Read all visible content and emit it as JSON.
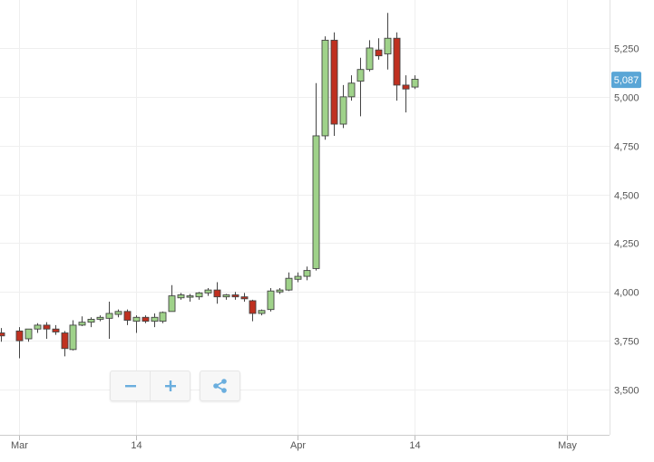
{
  "chart_data": {
    "type": "candlestick",
    "y_ticks": [
      3500,
      3750,
      4000,
      4250,
      4500,
      4750,
      5000,
      5250
    ],
    "y_tick_labels": [
      "3,500",
      "3,750",
      "4,000",
      "4,250",
      "4,500",
      "4,750",
      "5,000",
      "5,250"
    ],
    "ylim": [
      3280,
      5500
    ],
    "x_axis_labels": [
      {
        "date": "Mar 1",
        "label": "Mar"
      },
      {
        "date": "Mar 14",
        "label": "14"
      },
      {
        "date": "Apr 1",
        "label": "Apr"
      },
      {
        "date": "Apr 14",
        "label": "14"
      },
      {
        "date": "May 1",
        "label": "May"
      }
    ],
    "last_price_label": "5,087",
    "last_price": 5087,
    "colors": {
      "up_fill": "#9fd28a",
      "down_fill": "#bf3020",
      "candle_border": "#444444",
      "last_badge": "#5aa6d6",
      "grid": "#efefef",
      "icon": "#6aaede"
    },
    "candles": [
      {
        "date": "Feb 28",
        "open": 3790,
        "high": 3815,
        "low": 3745,
        "close": 3775
      },
      {
        "date": "Mar 1",
        "open": 3800,
        "high": 3820,
        "low": 3660,
        "close": 3750
      },
      {
        "date": "Mar 2",
        "open": 3760,
        "high": 3810,
        "low": 3745,
        "close": 3810
      },
      {
        "date": "Mar 3",
        "open": 3810,
        "high": 3840,
        "low": 3790,
        "close": 3830
      },
      {
        "date": "Mar 4",
        "open": 3830,
        "high": 3845,
        "low": 3760,
        "close": 3810
      },
      {
        "date": "Mar 5",
        "open": 3810,
        "high": 3830,
        "low": 3780,
        "close": 3795
      },
      {
        "date": "Mar 6",
        "open": 3790,
        "high": 3800,
        "low": 3670,
        "close": 3710
      },
      {
        "date": "Mar 7",
        "open": 3705,
        "high": 3855,
        "low": 3700,
        "close": 3830
      },
      {
        "date": "Mar 8",
        "open": 3830,
        "high": 3875,
        "low": 3825,
        "close": 3845
      },
      {
        "date": "Mar 9",
        "open": 3845,
        "high": 3870,
        "low": 3820,
        "close": 3860
      },
      {
        "date": "Mar 10",
        "open": 3860,
        "high": 3880,
        "low": 3850,
        "close": 3870
      },
      {
        "date": "Mar 11",
        "open": 3865,
        "high": 3950,
        "low": 3760,
        "close": 3890
      },
      {
        "date": "Mar 12",
        "open": 3885,
        "high": 3910,
        "low": 3870,
        "close": 3900
      },
      {
        "date": "Mar 13",
        "open": 3900,
        "high": 3910,
        "low": 3830,
        "close": 3855
      },
      {
        "date": "Mar 14",
        "open": 3850,
        "high": 3880,
        "low": 3790,
        "close": 3870
      },
      {
        "date": "Mar 15",
        "open": 3870,
        "high": 3880,
        "low": 3840,
        "close": 3850
      },
      {
        "date": "Mar 16",
        "open": 3850,
        "high": 3890,
        "low": 3820,
        "close": 3870
      },
      {
        "date": "Mar 17",
        "open": 3850,
        "high": 3900,
        "low": 3840,
        "close": 3895
      },
      {
        "date": "Mar 18",
        "open": 3900,
        "high": 4035,
        "low": 3900,
        "close": 3980
      },
      {
        "date": "Mar 19",
        "open": 3970,
        "high": 3995,
        "low": 3960,
        "close": 3985
      },
      {
        "date": "Mar 20",
        "open": 3975,
        "high": 3990,
        "low": 3950,
        "close": 3980
      },
      {
        "date": "Mar 21",
        "open": 3975,
        "high": 4000,
        "low": 3960,
        "close": 3995
      },
      {
        "date": "Mar 22",
        "open": 3995,
        "high": 4020,
        "low": 3980,
        "close": 4010
      },
      {
        "date": "Mar 23",
        "open": 4010,
        "high": 4050,
        "low": 3940,
        "close": 3975
      },
      {
        "date": "Mar 24",
        "open": 3975,
        "high": 3990,
        "low": 3960,
        "close": 3985
      },
      {
        "date": "Mar 25",
        "open": 3985,
        "high": 4000,
        "low": 3960,
        "close": 3975
      },
      {
        "date": "Mar 26",
        "open": 3975,
        "high": 3995,
        "low": 3950,
        "close": 3965
      },
      {
        "date": "Mar 27",
        "open": 3955,
        "high": 3960,
        "low": 3850,
        "close": 3890
      },
      {
        "date": "Mar 28",
        "open": 3890,
        "high": 3910,
        "low": 3880,
        "close": 3905
      },
      {
        "date": "Mar 29",
        "open": 3910,
        "high": 4020,
        "low": 3900,
        "close": 4005
      },
      {
        "date": "Mar 30",
        "open": 4000,
        "high": 4020,
        "low": 3990,
        "close": 4010
      },
      {
        "date": "Mar 31",
        "open": 4010,
        "high": 4100,
        "low": 4005,
        "close": 4070
      },
      {
        "date": "Apr 1",
        "open": 4065,
        "high": 4100,
        "low": 4050,
        "close": 4080
      },
      {
        "date": "Apr 2",
        "open": 4080,
        "high": 4130,
        "low": 4060,
        "close": 4110
      },
      {
        "date": "Apr 3",
        "open": 4120,
        "high": 5070,
        "low": 4110,
        "close": 4800
      },
      {
        "date": "Apr 4",
        "open": 4800,
        "high": 5310,
        "low": 4780,
        "close": 5290
      },
      {
        "date": "Apr 5",
        "open": 5290,
        "high": 5330,
        "low": 4800,
        "close": 4860
      },
      {
        "date": "Apr 6",
        "open": 4860,
        "high": 5060,
        "low": 4840,
        "close": 5000
      },
      {
        "date": "Apr 7",
        "open": 5000,
        "high": 5110,
        "low": 4980,
        "close": 5070
      },
      {
        "date": "Apr 8",
        "open": 5080,
        "high": 5200,
        "low": 4900,
        "close": 5140
      },
      {
        "date": "Apr 9",
        "open": 5140,
        "high": 5290,
        "low": 5130,
        "close": 5250
      },
      {
        "date": "Apr 10",
        "open": 5240,
        "high": 5300,
        "low": 5190,
        "close": 5210
      },
      {
        "date": "Apr 11",
        "open": 5220,
        "high": 5430,
        "low": 5140,
        "close": 5300
      },
      {
        "date": "Apr 12",
        "open": 5300,
        "high": 5330,
        "low": 4980,
        "close": 5060
      },
      {
        "date": "Apr 13",
        "open": 5060,
        "high": 5110,
        "low": 4920,
        "close": 5040
      },
      {
        "date": "Apr 14",
        "open": 5050,
        "high": 5110,
        "low": 5040,
        "close": 5090
      }
    ]
  },
  "icons": {
    "zoom_out": "minus-icon",
    "zoom_in": "plus-icon",
    "share": "share-icon"
  }
}
